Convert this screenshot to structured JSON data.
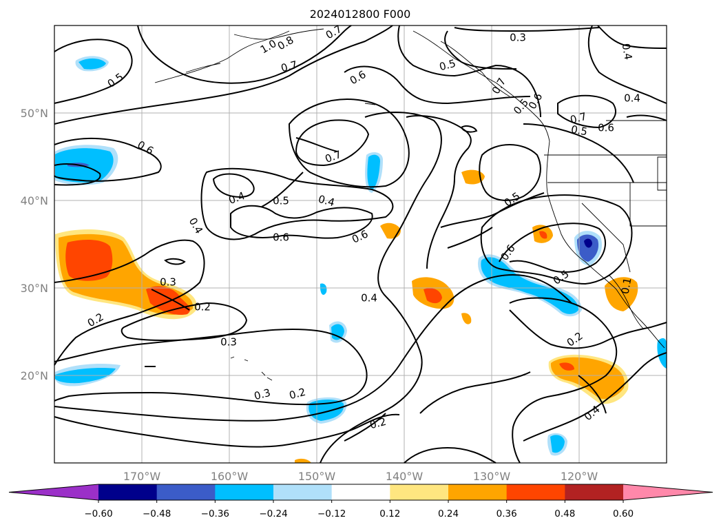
{
  "title": "2024012800 F000",
  "map": {
    "lat_labels": [
      "50°N",
      "40°N",
      "30°N",
      "20°N"
    ],
    "lon_labels": [
      "170°W",
      "160°W",
      "150°W",
      "140°W",
      "130°W",
      "120°W"
    ],
    "contour_labels": [
      "0.5",
      "0.6",
      "0.7",
      "0.8",
      "1.0",
      "0.7",
      "0.5",
      "0.3",
      "0.4",
      "0.4",
      "0.6",
      "0.7",
      "0.4",
      "0.5",
      "0.4",
      "0.6",
      "0.6",
      "0.4",
      "0.3",
      "0.2",
      "0.3",
      "0.2",
      "0.4",
      "0.2",
      "0.3",
      "0.2",
      "0.2",
      "0.4",
      "0.1",
      "0.5",
      "0.7",
      "0.6",
      "0.5",
      "0.7",
      "0.6",
      "0.5",
      "0.6",
      "0.5"
    ],
    "contour_color": "#000000"
  },
  "colorbar": {
    "ticks": [
      "−0.60",
      "−0.48",
      "−0.36",
      "−0.24",
      "−0.12",
      "0.12",
      "0.24",
      "0.36",
      "0.48",
      "0.60"
    ],
    "colors": [
      "#9b30c8",
      "#00008b",
      "#3b5cc8",
      "#00bfff",
      "#b0e0fa",
      "#ffffff",
      "#ffe680",
      "#ffa500",
      "#ff4500",
      "#b22222",
      "#ff88aa"
    ]
  }
}
